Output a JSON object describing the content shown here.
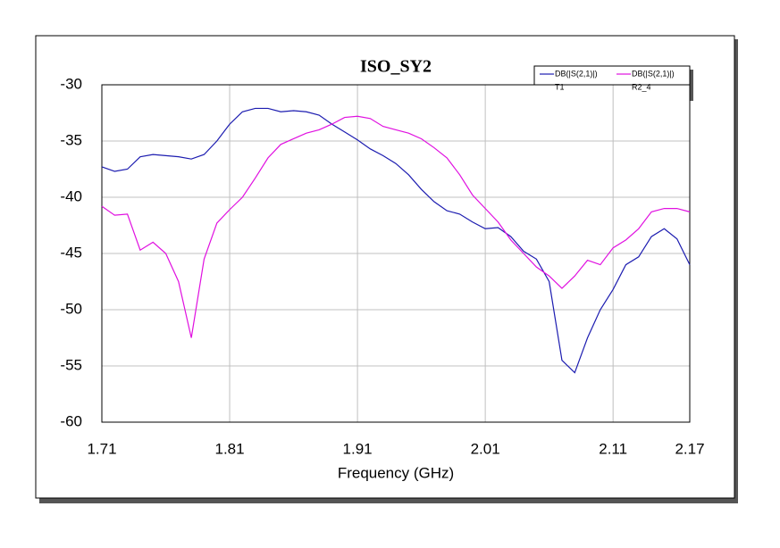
{
  "chart_data": {
    "type": "line",
    "title": "ISO_SY2",
    "x_label": "Frequency (GHz)",
    "x": [
      1.71,
      1.72,
      1.73,
      1.74,
      1.75,
      1.76,
      1.77,
      1.78,
      1.79,
      1.8,
      1.81,
      1.82,
      1.83,
      1.84,
      1.85,
      1.86,
      1.87,
      1.88,
      1.89,
      1.9,
      1.91,
      1.92,
      1.93,
      1.94,
      1.95,
      1.96,
      1.97,
      1.98,
      1.99,
      2.0,
      2.01,
      2.02,
      2.03,
      2.04,
      2.05,
      2.06,
      2.07,
      2.08,
      2.09,
      2.1,
      2.11,
      2.12,
      2.13,
      2.14,
      2.15,
      2.16,
      2.17
    ],
    "series": [
      {
        "name": "DB(|S(2,1)|)",
        "label": "T1",
        "color": "#1c1cb0",
        "values": [
          -37.3,
          -37.7,
          -37.5,
          -36.4,
          -36.2,
          -36.3,
          -36.4,
          -36.6,
          -36.2,
          -35.0,
          -33.5,
          -32.4,
          -32.1,
          -32.1,
          -32.4,
          -32.3,
          -32.4,
          -32.7,
          -33.5,
          -34.2,
          -34.9,
          -35.7,
          -36.3,
          -37.0,
          -38.0,
          -39.3,
          -40.4,
          -41.2,
          -41.5,
          -42.2,
          -42.8,
          -42.7,
          -43.5,
          -44.8,
          -45.5,
          -47.5,
          -54.5,
          -55.6,
          -52.5,
          -50.0,
          -48.2,
          -46.0,
          -45.3,
          -43.5,
          -42.8,
          -43.7,
          -46.0
        ]
      },
      {
        "name": "DB(|S(2,1)|)",
        "label": "R2_4",
        "color": "#e010e0",
        "values": [
          -40.8,
          -41.6,
          -41.5,
          -44.7,
          -44.0,
          -45.0,
          -47.5,
          -52.5,
          -45.5,
          -42.3,
          -41.1,
          -40.0,
          -38.3,
          -36.5,
          -35.3,
          -34.8,
          -34.3,
          -34.0,
          -33.5,
          -32.9,
          -32.8,
          -33.0,
          -33.7,
          -34.0,
          -34.3,
          -34.8,
          -35.6,
          -36.5,
          -38.0,
          -39.8,
          -41.0,
          -42.2,
          -43.8,
          -45.0,
          -46.2,
          -47.0,
          -48.1,
          -47.0,
          -45.6,
          -46.0,
          -44.5,
          -43.8,
          -42.8,
          -41.3,
          -41.0,
          -41.0,
          -41.3
        ]
      }
    ],
    "xlim": [
      1.71,
      2.17
    ],
    "xticks": [
      1.71,
      1.81,
      1.91,
      2.01,
      2.11,
      2.17
    ],
    "ylim": [
      -60,
      -30
    ],
    "yticks": [
      -30,
      -35,
      -40,
      -45,
      -50,
      -55,
      -60
    ],
    "grid": true
  }
}
